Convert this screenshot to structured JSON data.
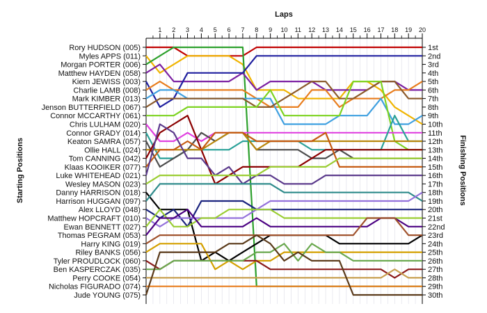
{
  "chart_data": {
    "type": "line",
    "title": "Laps",
    "xlabel": "Laps",
    "ylabel_left": "Starting Positions",
    "ylabel_right": "Finishing Positions",
    "x": [
      0,
      1,
      2,
      3,
      4,
      5,
      6,
      7,
      8,
      9,
      10,
      11,
      12,
      13,
      14,
      15,
      16,
      17,
      18,
      19,
      20
    ],
    "xlim": [
      0,
      20
    ],
    "ylim": [
      1,
      30
    ],
    "grid": true,
    "start_labels": [
      "Rory HUDSON (005)",
      "Myles APPS (011)",
      "Morgan PORTER (006)",
      "Matthew HAYDEN (058)",
      "Kiern JEWISS (003)",
      "Charlie LAMB (008)",
      "Mark KIMBER (013)",
      "Jenson BUTTERFIELD (067)",
      "Connor MCCARTHY (061)",
      "Chris LULHAM (020)",
      "Connor GRADY (014)",
      "Keaton SAMRA (057)",
      "Ollie HALL (024)",
      "Tom CANNING (042)",
      "Klaas KOOIKER (077)",
      "Luke WHITEHEAD (021)",
      "Wesley MASON (023)",
      "Danny HARRISON (018)",
      "Harrison HUGGAN (097)",
      "Alex LLOYD (048)",
      "Matthew HOPCRAFT (010)",
      "Ewan BENNETT (027)",
      "Thomas PEGRAM (053)",
      "Harry KING (019)",
      "Riley BANKS (056)",
      "Tyler PROUDLOCK (060)",
      "Ben KASPERCZAK (035)",
      "Perry COOKE (054)",
      "Nicholas FIGURADO (074)",
      "Jude YOUNG (075)"
    ],
    "finish_labels": [
      "1st",
      "2nd",
      "3rd",
      "4th",
      "5th",
      "6th",
      "7th",
      "8th",
      "9th",
      "10th",
      "11th",
      "12th",
      "13th",
      "14th",
      "15th",
      "16th",
      "17th",
      "18th",
      "19th",
      "20th",
      "21st",
      "22nd",
      "23rd",
      "24th",
      "25th",
      "26th",
      "27th",
      "28th",
      "29th",
      "30th"
    ],
    "series": [
      {
        "start": 1,
        "color": "#c00000",
        "values": [
          1,
          1,
          1,
          2,
          2,
          2,
          2,
          2,
          1,
          1,
          1,
          1,
          1,
          1,
          1,
          1,
          1,
          1,
          1,
          1,
          1
        ]
      },
      {
        "start": 2,
        "color": "#f0b400",
        "values": [
          2,
          4,
          3,
          2,
          2,
          2,
          2,
          3,
          6,
          6,
          6,
          7,
          7,
          7,
          7,
          5,
          5,
          6,
          8,
          9,
          10
        ]
      },
      {
        "start": 3,
        "color": "#2ca02c",
        "values": [
          3,
          2,
          1,
          1,
          1,
          1,
          1,
          1,
          29,
          29,
          29,
          29,
          29,
          29,
          29,
          29,
          29,
          29,
          29,
          29,
          29
        ]
      },
      {
        "start": 4,
        "color": "#7b1fa2",
        "values": [
          4,
          3,
          5,
          5,
          5,
          5,
          5,
          4,
          6,
          5,
          5,
          5,
          5,
          6,
          6,
          6,
          6,
          5,
          5,
          6,
          6
        ]
      },
      {
        "start": 5,
        "color": "#1f1f9f",
        "values": [
          5,
          8,
          7,
          4,
          4,
          4,
          4,
          4,
          2,
          2,
          2,
          2,
          2,
          2,
          2,
          2,
          2,
          2,
          2,
          2,
          2
        ]
      },
      {
        "start": 6,
        "color": "#e87d1e",
        "values": [
          6,
          5,
          6,
          6,
          6,
          6,
          6,
          6,
          7,
          8,
          8,
          8,
          6,
          6,
          8,
          7,
          7,
          7,
          6,
          6,
          5
        ]
      },
      {
        "start": 7,
        "color": "#3fa0e0",
        "values": [
          7,
          6,
          6,
          7,
          7,
          7,
          7,
          7,
          7,
          7,
          10,
          10,
          10,
          10,
          9,
          9,
          9,
          7,
          10,
          10,
          9
        ]
      },
      {
        "start": 8,
        "color": "#8b5a2b",
        "values": [
          8,
          7,
          7,
          7,
          7,
          7,
          7,
          7,
          8,
          8,
          7,
          6,
          5,
          5,
          7,
          7,
          6,
          5,
          5,
          7,
          7
        ]
      },
      {
        "start": 9,
        "color": "#7dd321",
        "values": [
          9,
          9,
          9,
          8,
          8,
          8,
          8,
          8,
          8,
          6,
          9,
          9,
          9,
          9,
          9,
          5,
          5,
          5,
          12,
          13,
          13
        ]
      },
      {
        "start": 10,
        "color": "#e040e0",
        "values": [
          10,
          12,
          12,
          11,
          12,
          11,
          11,
          11,
          11,
          11,
          11,
          11,
          11,
          11,
          11,
          11,
          11,
          11,
          11,
          11,
          11
        ]
      },
      {
        "start": 11,
        "color": "#2aa198",
        "values": [
          11,
          14,
          14,
          13,
          13,
          13,
          13,
          12,
          12,
          12,
          12,
          12,
          13,
          13,
          13,
          13,
          13,
          13,
          9,
          12,
          12
        ]
      },
      {
        "start": 12,
        "color": "#4d4d4d",
        "values": [
          12,
          15,
          14,
          13,
          11,
          12,
          11,
          11,
          13,
          13,
          13,
          13,
          14,
          14,
          13,
          14,
          14,
          14,
          14,
          14,
          14
        ]
      },
      {
        "start": 13,
        "color": "#b8860b",
        "values": [
          13,
          13,
          13,
          13,
          13,
          12,
          11,
          11,
          13,
          12,
          12,
          12,
          12,
          12,
          12,
          12,
          12,
          12,
          12,
          12,
          12
        ]
      },
      {
        "start": 14,
        "color": "#8b0000",
        "values": [
          14,
          11,
          10,
          9,
          13,
          17,
          16,
          15,
          15,
          15,
          15,
          15,
          14,
          13,
          13,
          13,
          13,
          13,
          13,
          13,
          13
        ]
      },
      {
        "start": 15,
        "color": "#c55a11",
        "values": [
          15,
          13,
          13,
          12,
          13,
          11,
          11,
          11,
          12,
          12,
          12,
          12,
          12,
          11,
          15,
          15,
          15,
          15,
          15,
          15,
          15
        ]
      },
      {
        "start": 16,
        "color": "#5b3a8c",
        "values": [
          16,
          10,
          11,
          14,
          14,
          16,
          15,
          17,
          16,
          16,
          17,
          17,
          17,
          16,
          16,
          16,
          16,
          16,
          16,
          16,
          16
        ]
      },
      {
        "start": 17,
        "color": "#9acd32",
        "values": [
          17,
          16,
          16,
          16,
          16,
          16,
          16,
          16,
          16,
          15,
          15,
          15,
          15,
          15,
          14,
          14,
          14,
          14,
          14,
          14,
          14
        ]
      },
      {
        "start": 18,
        "color": "#000000",
        "values": [
          18,
          20,
          20,
          20,
          26,
          25,
          26,
          25,
          24,
          23,
          23,
          23,
          23,
          23,
          24,
          24,
          24,
          24,
          24,
          24,
          23
        ]
      },
      {
        "start": 19,
        "color": "#2e8b8b",
        "values": [
          19,
          17,
          17,
          17,
          17,
          17,
          17,
          17,
          17,
          17,
          18,
          18,
          18,
          18,
          18,
          18,
          18,
          18,
          18,
          18,
          19
        ]
      },
      {
        "start": 20,
        "color": "#1a237e",
        "values": [
          20,
          21,
          20,
          22,
          19,
          19,
          19,
          19,
          20,
          20,
          20,
          20,
          20,
          20,
          20,
          20,
          20,
          20,
          20,
          20,
          20
        ]
      },
      {
        "start": 21,
        "color": "#9370db",
        "values": [
          21,
          22,
          21,
          21,
          21,
          21,
          21,
          21,
          20,
          19,
          19,
          19,
          19,
          19,
          19,
          19,
          19,
          19,
          19,
          19,
          18
        ]
      },
      {
        "start": 22,
        "color": "#9acd32",
        "values": [
          22,
          20,
          22,
          22,
          21,
          21,
          20,
          20,
          20,
          20,
          21,
          21,
          21,
          21,
          21,
          21,
          21,
          21,
          21,
          21,
          21
        ]
      },
      {
        "start": 23,
        "color": "#4b0082",
        "values": [
          23,
          21,
          21,
          20,
          22,
          22,
          22,
          22,
          21,
          22,
          22,
          22,
          22,
          22,
          22,
          22,
          22,
          21,
          21,
          22,
          22
        ]
      },
      {
        "start": 24,
        "color": "#a0522d",
        "values": [
          24,
          23,
          23,
          23,
          23,
          23,
          23,
          23,
          23,
          23,
          23,
          23,
          23,
          23,
          23,
          23,
          21,
          21,
          21,
          23,
          23
        ]
      },
      {
        "start": 25,
        "color": "#d4a000",
        "values": [
          25,
          24,
          24,
          24,
          24,
          27,
          26,
          27,
          26,
          26,
          25,
          25,
          25,
          25,
          25,
          25,
          25,
          25,
          25,
          25,
          25
        ]
      },
      {
        "start": 26,
        "color": "#8b1a1a",
        "values": [
          26,
          27,
          26,
          26,
          26,
          26,
          26,
          26,
          26,
          27,
          27,
          27,
          27,
          27,
          27,
          27,
          27,
          27,
          28,
          27,
          27
        ]
      },
      {
        "start": 27,
        "color": "#6aa84f",
        "values": [
          27,
          27,
          26,
          26,
          26,
          26,
          26,
          26,
          25,
          25,
          24,
          26,
          24,
          25,
          25,
          26,
          26,
          26,
          26,
          26,
          26
        ]
      },
      {
        "start": 28,
        "color": "#c8a050",
        "values": [
          28,
          28,
          28,
          28,
          28,
          28,
          28,
          28,
          28,
          28,
          28,
          28,
          28,
          28,
          28,
          28,
          28,
          28,
          27,
          28,
          28
        ]
      },
      {
        "start": 29,
        "color": "#e87d1e",
        "values": [
          29,
          29,
          29,
          29,
          29,
          29,
          29,
          29,
          29,
          29,
          29,
          29,
          29,
          29,
          29,
          29,
          29,
          29,
          29,
          29,
          29
        ]
      },
      {
        "start": 30,
        "color": "#5a3a1a",
        "values": [
          30,
          25,
          25,
          25,
          25,
          25,
          24,
          24,
          23,
          24,
          26,
          25,
          26,
          26,
          26,
          30,
          30,
          30,
          30,
          30,
          30
        ]
      }
    ]
  }
}
